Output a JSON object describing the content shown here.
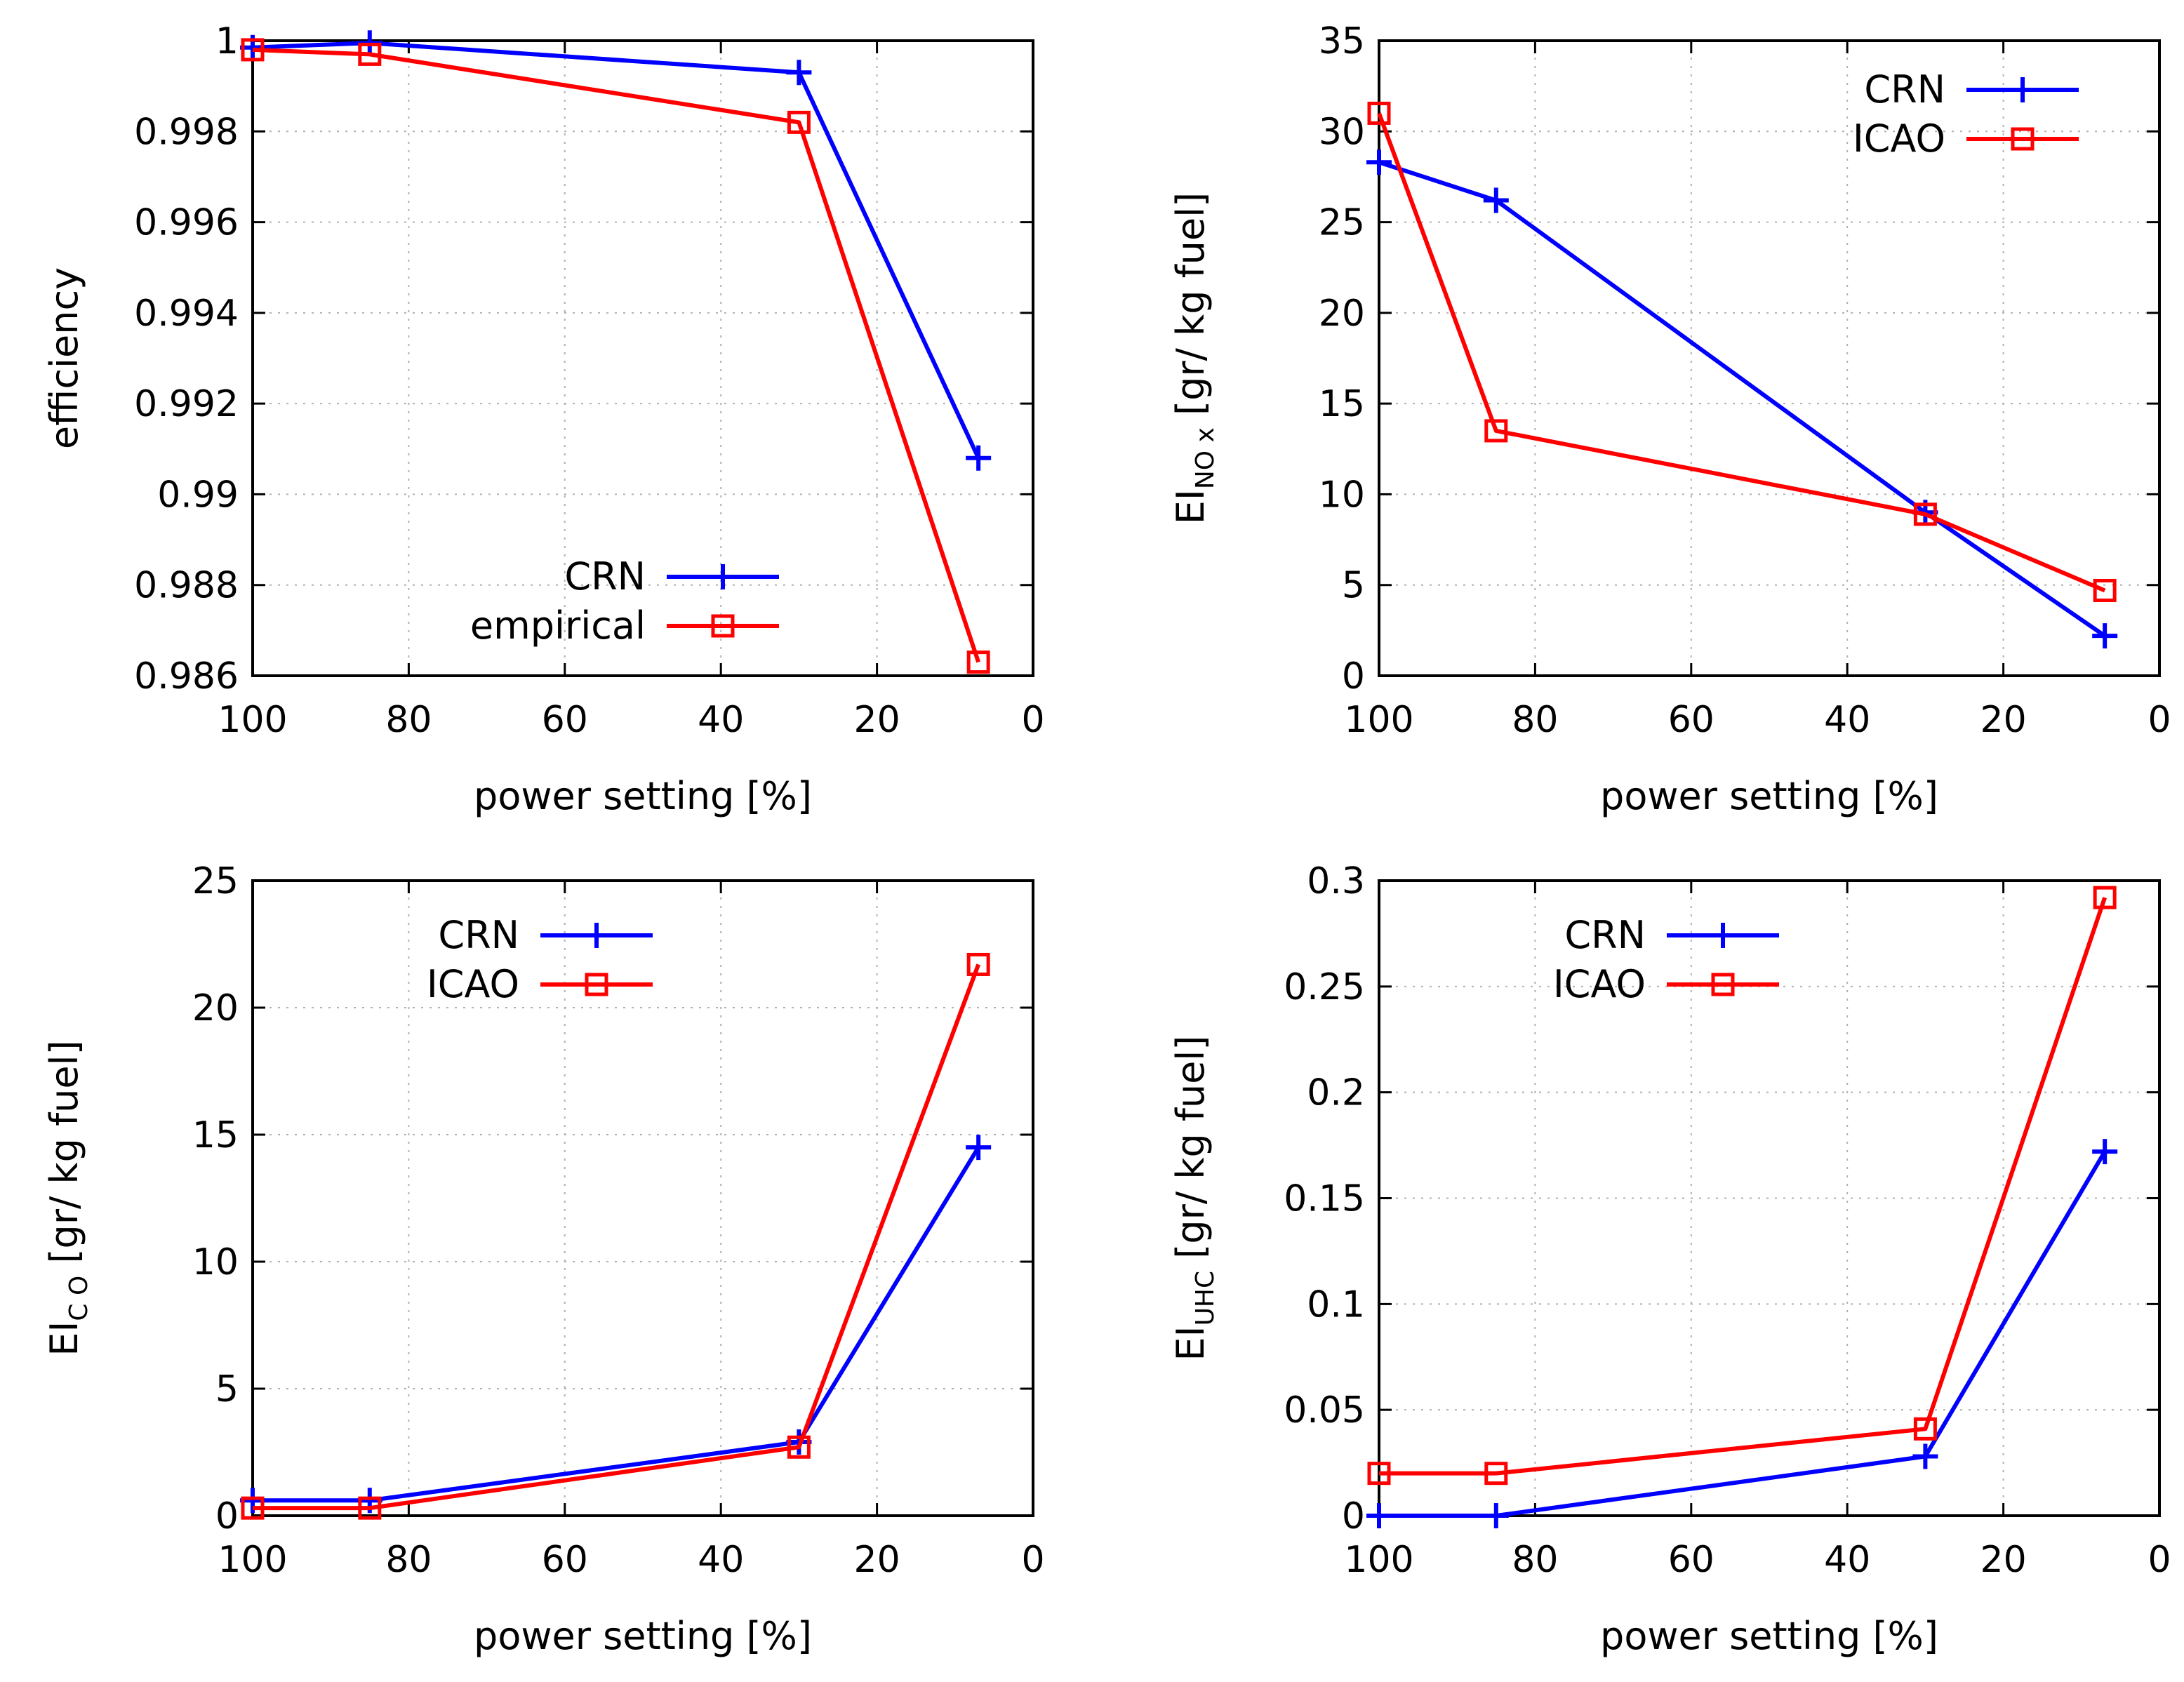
{
  "colors": {
    "crn": "#0000ff",
    "red": "#ff0000"
  },
  "chart_data": [
    {
      "id": "efficiency",
      "type": "line",
      "title": "",
      "xlabel": "power setting [%]",
      "ylabel": "efficiency",
      "x_ticks": [
        100,
        80,
        60,
        40,
        20,
        0
      ],
      "x_tick_labels": [
        "100",
        "80",
        "60",
        "40",
        "20",
        "0"
      ],
      "y_ticks": [
        0.986,
        0.988,
        0.99,
        0.992,
        0.994,
        0.996,
        0.998,
        1
      ],
      "y_tick_labels": [
        "0.986",
        "0.988",
        "0.99",
        "0.992",
        "0.994",
        "0.996",
        "0.998",
        "1"
      ],
      "xlim": [
        100,
        0
      ],
      "ylim": [
        0.986,
        1.0
      ],
      "grid": true,
      "legend": "bottom-left",
      "series": [
        {
          "name": "CRN",
          "marker": "plus",
          "color": "#0000ff",
          "x": [
            100,
            85,
            30,
            7
          ],
          "values": [
            0.99985,
            0.99995,
            0.9993,
            0.9908
          ]
        },
        {
          "name": "empirical",
          "marker": "square",
          "color": "#ff0000",
          "x": [
            100,
            85,
            30,
            7
          ],
          "values": [
            0.9998,
            0.9997,
            0.9982,
            0.9863
          ]
        }
      ]
    },
    {
      "id": "nox",
      "type": "line",
      "title": "",
      "xlabel": "power setting [%]",
      "ylabel_prefix": "EI",
      "ylabel_sub": "NO x",
      "ylabel_suffix": " [gr/ kg fuel]",
      "x_ticks": [
        100,
        80,
        60,
        40,
        20,
        0
      ],
      "x_tick_labels": [
        "100",
        "80",
        "60",
        "40",
        "20",
        "0"
      ],
      "y_ticks": [
        0,
        5,
        10,
        15,
        20,
        25,
        30,
        35
      ],
      "y_tick_labels": [
        "0",
        "5",
        "10",
        "15",
        "20",
        "25",
        "30",
        "35"
      ],
      "xlim": [
        100,
        0
      ],
      "ylim": [
        0,
        35
      ],
      "grid": true,
      "legend": "top-right",
      "series": [
        {
          "name": "CRN",
          "marker": "plus",
          "color": "#0000ff",
          "x": [
            100,
            85,
            30,
            7
          ],
          "values": [
            28.3,
            26.2,
            9.0,
            2.2
          ]
        },
        {
          "name": "ICAO",
          "marker": "square",
          "color": "#ff0000",
          "x": [
            100,
            85,
            30,
            7
          ],
          "values": [
            31.0,
            13.5,
            8.9,
            4.7
          ]
        }
      ]
    },
    {
      "id": "co",
      "type": "line",
      "title": "",
      "xlabel": "power setting [%]",
      "ylabel_prefix": "EI",
      "ylabel_sub": "C O",
      "ylabel_suffix": "  [gr/ kg fuel]",
      "x_ticks": [
        100,
        80,
        60,
        40,
        20,
        0
      ],
      "x_tick_labels": [
        "100",
        "80",
        "60",
        "40",
        "20",
        "0"
      ],
      "y_ticks": [
        0,
        5,
        10,
        15,
        20,
        25
      ],
      "y_tick_labels": [
        "0",
        "5",
        "10",
        "15",
        "20",
        "25"
      ],
      "xlim": [
        100,
        0
      ],
      "ylim": [
        0,
        25
      ],
      "grid": true,
      "legend": "top-left",
      "series": [
        {
          "name": "CRN",
          "marker": "plus",
          "color": "#0000ff",
          "x": [
            100,
            85,
            30,
            7
          ],
          "values": [
            0.6,
            0.6,
            2.9,
            14.5
          ]
        },
        {
          "name": "ICAO",
          "marker": "square",
          "color": "#ff0000",
          "x": [
            100,
            85,
            30,
            7
          ],
          "values": [
            0.3,
            0.3,
            2.7,
            21.7
          ]
        }
      ]
    },
    {
      "id": "uhc",
      "type": "line",
      "title": "",
      "xlabel": "power setting [%]",
      "ylabel_prefix": "EI",
      "ylabel_sub": "UHC",
      "ylabel_suffix": "  [gr/ kg fuel]",
      "x_ticks": [
        100,
        80,
        60,
        40,
        20,
        0
      ],
      "x_tick_labels": [
        "100",
        "80",
        "60",
        "40",
        "20",
        "0"
      ],
      "y_ticks": [
        0,
        0.05,
        0.1,
        0.15,
        0.2,
        0.25,
        0.3
      ],
      "y_tick_labels": [
        "0",
        "0.05",
        "0.1",
        "0.15",
        "0.2",
        "0.25",
        "0.3"
      ],
      "xlim": [
        100,
        0
      ],
      "ylim": [
        0,
        0.3
      ],
      "grid": true,
      "legend": "top-left",
      "series": [
        {
          "name": "CRN",
          "marker": "plus",
          "color": "#0000ff",
          "x": [
            100,
            85,
            30,
            7
          ],
          "values": [
            0.0,
            0.0,
            0.028,
            0.172
          ]
        },
        {
          "name": "ICAO",
          "marker": "square",
          "color": "#ff0000",
          "x": [
            100,
            85,
            30,
            7
          ],
          "values": [
            0.02,
            0.02,
            0.041,
            0.292
          ]
        }
      ]
    }
  ]
}
